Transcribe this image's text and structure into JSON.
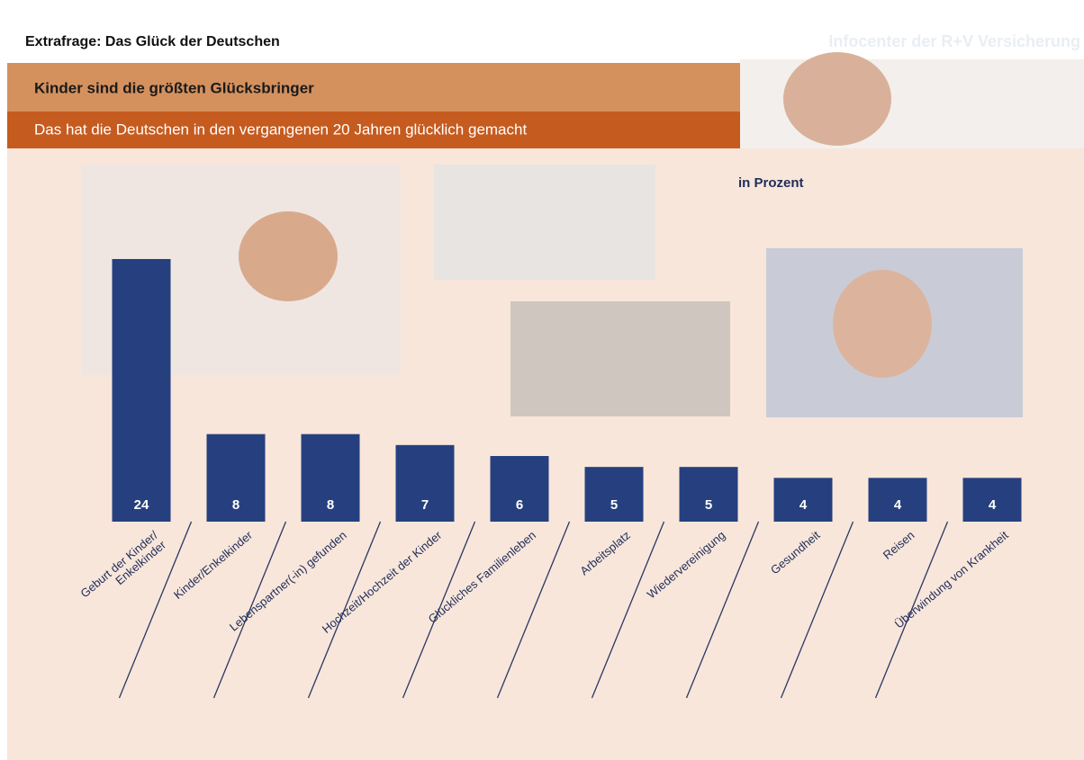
{
  "header": {
    "title": "Extrafrage: Das Glück der Deutschen",
    "source": "Infocenter der R+V Versicherung"
  },
  "chart_data": {
    "type": "bar",
    "title": "Kinder sind die größten Glücksbringer",
    "subtitle": "Das hat die Deutschen in den vergangenen 20 Jahren glücklich gemacht",
    "unit_label": "in Prozent",
    "categories": [
      "Geburt der Kinder/\nEnkelkinder",
      "Kinder/Enkelkinder",
      "Lebenspartner(-in) gefunden",
      "Hochzeit/Hochzeit der Kinder",
      "Glückliches Familienleben",
      "Arbeitsplatz",
      "Wiedervereinigung",
      "Gesundheit",
      "Reisen",
      "Überwindung von Krankheit"
    ],
    "values": [
      24,
      8,
      8,
      7,
      6,
      5,
      5,
      4,
      4,
      4
    ],
    "color": "#26407f"
  }
}
